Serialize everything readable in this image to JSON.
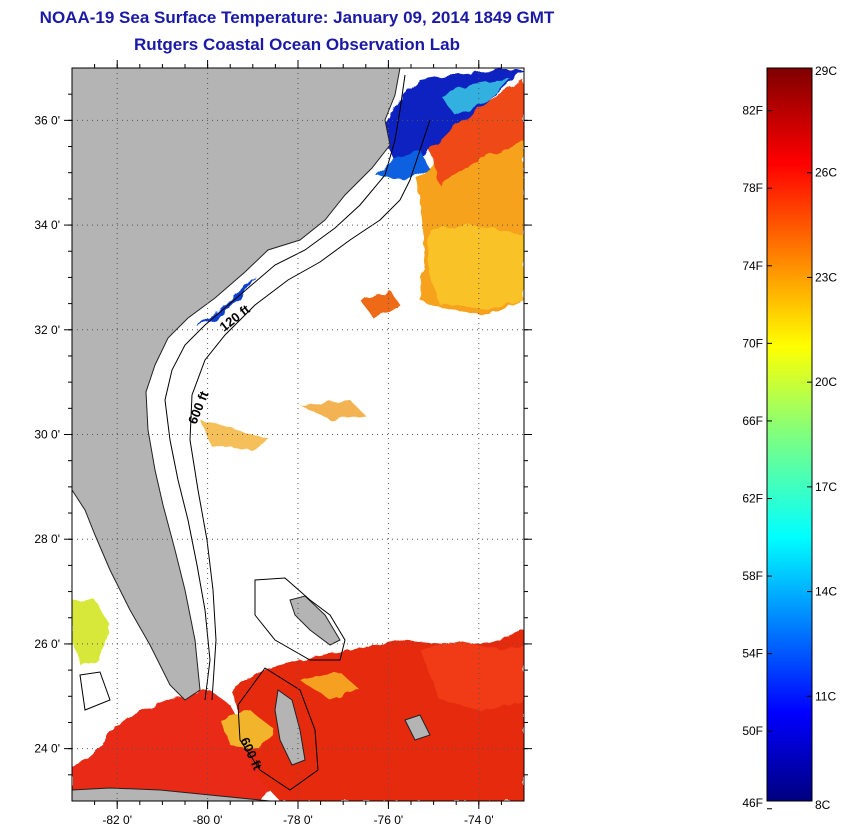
{
  "header": {
    "title": "NOAA-19 Sea Surface Temperature:  January 09, 2014 1849 GMT",
    "subtitle": "Rutgers Coastal Ocean Observation Lab"
  },
  "map": {
    "lon_range": [
      -83,
      -73
    ],
    "lat_range": [
      23,
      37
    ],
    "x_ticks": [
      {
        "lon": -82,
        "label": "-82 0'"
      },
      {
        "lon": -80,
        "label": "-80 0'"
      },
      {
        "lon": -78,
        "label": "-78 0'"
      },
      {
        "lon": -76,
        "label": "-76 0'"
      },
      {
        "lon": -74,
        "label": "-74 0'"
      }
    ],
    "y_ticks": [
      {
        "lat": 36,
        "label": "36 0'"
      },
      {
        "lat": 34,
        "label": "34 0'"
      },
      {
        "lat": 32,
        "label": "32 0'"
      },
      {
        "lat": 30,
        "label": "30 0'"
      },
      {
        "lat": 28,
        "label": "28 0'"
      },
      {
        "lat": 26,
        "label": "26 0'"
      },
      {
        "lat": 24,
        "label": "24 0'"
      }
    ],
    "contour_labels": [
      "120 ft",
      "600 ft",
      "600 ft"
    ],
    "colors": {
      "land": "#b4b4b4",
      "ocean": "#ffffff",
      "grid": "#555555"
    }
  },
  "colorbar": {
    "range_c": [
      8,
      29
    ],
    "celsius_labels": [
      {
        "value": 29,
        "label": "29C"
      },
      {
        "value": 26,
        "label": "26C"
      },
      {
        "value": 23,
        "label": "23C"
      },
      {
        "value": 20,
        "label": "20C"
      },
      {
        "value": 17,
        "label": "17C"
      },
      {
        "value": 14,
        "label": "14C"
      },
      {
        "value": 11,
        "label": "11C"
      },
      {
        "value": 8,
        "label": "8C"
      }
    ],
    "fahrenheit_labels": [
      {
        "value": 82,
        "label": "82F"
      },
      {
        "value": 78,
        "label": "78F"
      },
      {
        "value": 74,
        "label": "74F"
      },
      {
        "value": 70,
        "label": "70F"
      },
      {
        "value": 66,
        "label": "66F"
      },
      {
        "value": 62,
        "label": "62F"
      },
      {
        "value": 58,
        "label": "58F"
      },
      {
        "value": 54,
        "label": "54F"
      },
      {
        "value": 50,
        "label": "50F"
      },
      {
        "value": 46,
        "label": "46F"
      }
    ]
  }
}
